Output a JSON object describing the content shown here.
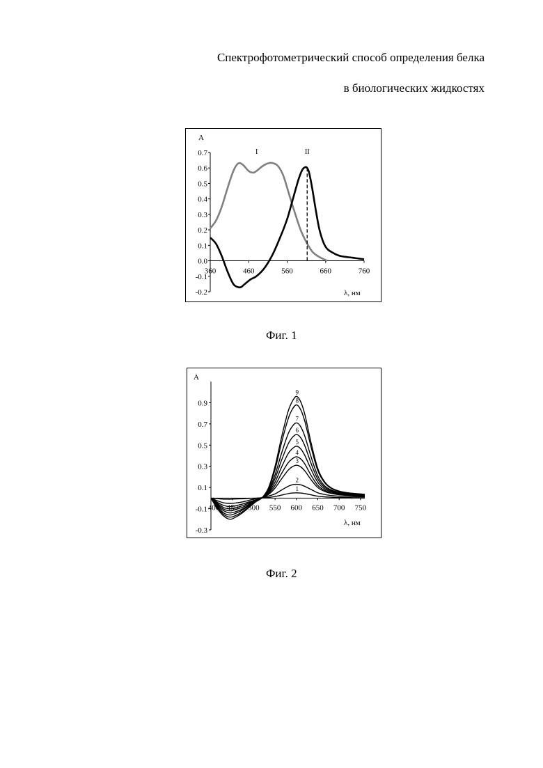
{
  "document": {
    "title_line1": "Спектрофотометрический способ определения белка",
    "title_line2": "в биологических жидкостях",
    "fig1_caption": "Фиг. 1",
    "fig2_caption": "Фиг. 2"
  },
  "chart_data": [
    {
      "type": "line",
      "title": "",
      "ylabel": "A",
      "xlabel": "λ, нм",
      "xlim": [
        360,
        760
      ],
      "ylim": [
        -0.2,
        0.7
      ],
      "x_ticks": [
        "360",
        "460",
        "560",
        "660",
        "760"
      ],
      "y_ticks": [
        "0.7",
        "0.6",
        "0.5",
        "0.4",
        "0.3",
        "0.2",
        "0.1",
        "0.0",
        "-0.1",
        "-0.2"
      ],
      "grid": false,
      "legend": "none",
      "annotations": [
        "I",
        "II"
      ],
      "series": [
        {
          "name": "I",
          "color": "#808080",
          "x": [
            360,
            375,
            390,
            405,
            420,
            433,
            445,
            460,
            472,
            480,
            495,
            510,
            525,
            537,
            550,
            565,
            580,
            595,
            610,
            625,
            640,
            655,
            665
          ],
          "y": [
            0.21,
            0.26,
            0.35,
            0.47,
            0.58,
            0.63,
            0.62,
            0.58,
            0.57,
            0.58,
            0.61,
            0.63,
            0.63,
            0.61,
            0.55,
            0.43,
            0.31,
            0.2,
            0.12,
            0.06,
            0.03,
            0.01,
            0.0
          ]
        },
        {
          "name": "II",
          "color": "#000000",
          "x": [
            360,
            375,
            390,
            405,
            420,
            432,
            440,
            450,
            465,
            480,
            500,
            520,
            540,
            560,
            575,
            590,
            600,
            607,
            612,
            617,
            625,
            635,
            645,
            660,
            680,
            700,
            730,
            760
          ],
          "y": [
            0.15,
            0.11,
            0.03,
            -0.07,
            -0.15,
            -0.17,
            -0.17,
            -0.15,
            -0.12,
            -0.1,
            -0.05,
            0.03,
            0.14,
            0.27,
            0.4,
            0.53,
            0.59,
            0.605,
            0.6,
            0.57,
            0.47,
            0.32,
            0.19,
            0.09,
            0.05,
            0.03,
            0.02,
            0.01
          ]
        }
      ],
      "reference_line": {
        "x": 612,
        "y_from": 0.0,
        "y_to": 0.6,
        "style": "dashed"
      }
    },
    {
      "type": "line",
      "title": "",
      "ylabel": "A",
      "xlabel": "λ, нм",
      "xlim": [
        400,
        760
      ],
      "ylim": [
        -0.3,
        1.1
      ],
      "x_ticks": [
        "400",
        "450",
        "500",
        "550",
        "600",
        "650",
        "700",
        "750"
      ],
      "y_ticks": [
        "0.9",
        "0.7",
        "0.5",
        "0.3",
        "0.1",
        "-0.1",
        "-0.3"
      ],
      "grid": false,
      "legend": "none",
      "x": [
        400,
        415,
        430,
        445,
        460,
        475,
        490,
        505,
        520,
        535,
        550,
        565,
        580,
        590,
        600,
        610,
        620,
        635,
        650,
        665,
        680,
        700,
        725,
        760
      ],
      "series": [
        {
          "name": "1",
          "color": "#000000",
          "peak": 0.05,
          "trough": -0.01,
          "y": [
            0.0,
            -0.005,
            -0.01,
            -0.01,
            -0.008,
            -0.006,
            -0.003,
            0.0,
            0.002,
            0.006,
            0.015,
            0.028,
            0.042,
            0.048,
            0.05,
            0.048,
            0.042,
            0.03,
            0.018,
            0.012,
            0.008,
            0.005,
            0.004,
            0.003
          ]
        },
        {
          "name": "2",
          "color": "#000000",
          "peak": 0.13,
          "trough": -0.05,
          "y": [
            0.0,
            -0.025,
            -0.045,
            -0.05,
            -0.045,
            -0.035,
            -0.02,
            -0.005,
            0.005,
            0.02,
            0.04,
            0.075,
            0.11,
            0.125,
            0.13,
            0.125,
            0.11,
            0.08,
            0.05,
            0.035,
            0.025,
            0.018,
            0.015,
            0.012
          ]
        },
        {
          "name": "3",
          "color": "#000000",
          "peak": 0.31,
          "trough": -0.08,
          "y": [
            0.0,
            -0.04,
            -0.07,
            -0.08,
            -0.07,
            -0.055,
            -0.035,
            -0.015,
            0.005,
            0.035,
            0.095,
            0.18,
            0.26,
            0.295,
            0.31,
            0.295,
            0.255,
            0.17,
            0.1,
            0.065,
            0.045,
            0.032,
            0.025,
            0.02
          ]
        },
        {
          "name": "4",
          "color": "#000000",
          "peak": 0.39,
          "trough": -0.1,
          "y": [
            0.0,
            -0.05,
            -0.09,
            -0.1,
            -0.09,
            -0.07,
            -0.045,
            -0.02,
            0.005,
            0.045,
            0.12,
            0.23,
            0.33,
            0.37,
            0.39,
            0.37,
            0.32,
            0.21,
            0.12,
            0.075,
            0.05,
            0.036,
            0.028,
            0.022
          ]
        },
        {
          "name": "5",
          "color": "#000000",
          "peak": 0.49,
          "trough": -0.12,
          "y": [
            0.0,
            -0.06,
            -0.105,
            -0.12,
            -0.105,
            -0.085,
            -0.055,
            -0.02,
            0.005,
            0.055,
            0.15,
            0.29,
            0.415,
            0.465,
            0.49,
            0.465,
            0.4,
            0.265,
            0.15,
            0.09,
            0.06,
            0.042,
            0.032,
            0.025
          ]
        },
        {
          "name": "6",
          "color": "#000000",
          "peak": 0.6,
          "trough": -0.14,
          "y": [
            0.0,
            -0.07,
            -0.12,
            -0.14,
            -0.125,
            -0.1,
            -0.065,
            -0.025,
            0.005,
            0.065,
            0.185,
            0.355,
            0.505,
            0.57,
            0.6,
            0.57,
            0.49,
            0.32,
            0.18,
            0.105,
            0.07,
            0.048,
            0.036,
            0.028
          ]
        },
        {
          "name": "7",
          "color": "#000000",
          "peak": 0.71,
          "trough": -0.16,
          "y": [
            0.0,
            -0.08,
            -0.14,
            -0.16,
            -0.14,
            -0.11,
            -0.07,
            -0.03,
            0.005,
            0.075,
            0.22,
            0.42,
            0.6,
            0.675,
            0.71,
            0.675,
            0.58,
            0.38,
            0.21,
            0.12,
            0.08,
            0.054,
            0.04,
            0.03
          ]
        },
        {
          "name": "8",
          "color": "#000000",
          "peak": 0.88,
          "trough": -0.18,
          "y": [
            0.0,
            -0.09,
            -0.155,
            -0.18,
            -0.16,
            -0.125,
            -0.08,
            -0.03,
            0.005,
            0.09,
            0.27,
            0.52,
            0.74,
            0.835,
            0.88,
            0.835,
            0.72,
            0.47,
            0.26,
            0.15,
            0.095,
            0.062,
            0.045,
            0.034
          ]
        },
        {
          "name": "9",
          "color": "#000000",
          "peak": 0.96,
          "trough": -0.2,
          "y": [
            0.0,
            -0.1,
            -0.17,
            -0.2,
            -0.175,
            -0.135,
            -0.085,
            -0.035,
            0.005,
            0.1,
            0.3,
            0.57,
            0.81,
            0.91,
            0.96,
            0.91,
            0.785,
            0.51,
            0.28,
            0.16,
            0.1,
            0.066,
            0.048,
            0.036
          ]
        }
      ]
    }
  ]
}
